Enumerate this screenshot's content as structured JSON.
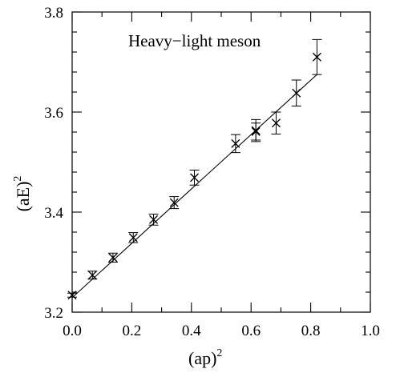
{
  "chart_data": {
    "type": "scatter",
    "title": "",
    "annotation": "Heavy−light meson",
    "xlabel": "(ap)",
    "xlabel_sup": "2",
    "ylabel": "(aE)",
    "ylabel_sup": "2",
    "xlim": [
      0.0,
      1.0
    ],
    "ylim": [
      3.2,
      3.8
    ],
    "x_ticks": [
      "0.0",
      "0.2",
      "0.4",
      "0.6",
      "0.8",
      "1.0"
    ],
    "y_ticks": [
      "3.2",
      "3.4",
      "3.6",
      "3.8"
    ],
    "grid": false,
    "marker": "x",
    "series": [
      {
        "points": [
          {
            "x": 0.0,
            "y": 3.234,
            "err": 0.004
          },
          {
            "x": 0.068,
            "y": 3.274,
            "err": 0.008
          },
          {
            "x": 0.137,
            "y": 3.309,
            "err": 0.009
          },
          {
            "x": 0.205,
            "y": 3.349,
            "err": 0.01
          },
          {
            "x": 0.273,
            "y": 3.385,
            "err": 0.011
          },
          {
            "x": 0.342,
            "y": 3.419,
            "err": 0.012
          },
          {
            "x": 0.41,
            "y": 3.469,
            "err": 0.015
          },
          {
            "x": 0.548,
            "y": 3.537,
            "err": 0.018
          },
          {
            "x": 0.616,
            "y": 3.563,
            "err": 0.022
          },
          {
            "x": 0.616,
            "y": 3.561,
            "err": 0.017
          },
          {
            "x": 0.684,
            "y": 3.578,
            "err": 0.022
          },
          {
            "x": 0.752,
            "y": 3.638,
            "err": 0.026
          },
          {
            "x": 0.821,
            "y": 3.71,
            "err": 0.035
          }
        ]
      }
    ],
    "fit_line": {
      "x": [
        0.0,
        0.821
      ],
      "y": [
        3.229,
        3.675
      ]
    }
  }
}
